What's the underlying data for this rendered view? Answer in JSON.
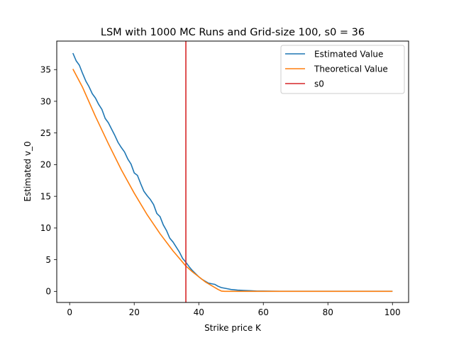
{
  "chart_data": {
    "type": "line",
    "title": "LSM with 1000 MC Runs and Grid-size 100, s0 = 36",
    "xlabel": "Strike price K",
    "ylabel": "Estimated v_0",
    "xlim": [
      -4.0,
      105.0
    ],
    "ylim": [
      -1.75,
      39.5
    ],
    "xticks": [
      0,
      20,
      40,
      60,
      80,
      100
    ],
    "yticks": [
      0,
      5,
      10,
      15,
      20,
      25,
      30,
      35
    ],
    "grid": false,
    "legend_position": "upper-right",
    "series": [
      {
        "name": "Estimated Value",
        "color": "#1f77b4",
        "x": [
          1,
          2,
          3,
          4,
          5,
          6,
          7,
          8,
          9,
          10,
          11,
          12,
          13,
          14,
          15,
          16,
          17,
          18,
          19,
          20,
          21,
          22,
          23,
          24,
          25,
          26,
          27,
          28,
          29,
          30,
          31,
          32,
          33,
          34,
          35,
          36,
          37,
          38,
          39,
          40,
          41,
          42,
          43,
          44,
          45,
          46,
          47,
          48,
          49,
          50,
          52,
          54,
          56,
          58,
          60,
          65,
          70,
          75,
          80,
          85,
          90,
          95,
          100
        ],
        "y": [
          37.6,
          36.4,
          35.7,
          34.4,
          33.2,
          32.3,
          31.2,
          30.5,
          29.5,
          28.7,
          27.3,
          26.6,
          25.6,
          24.6,
          23.5,
          22.7,
          22.0,
          20.9,
          20.1,
          18.7,
          18.3,
          17.0,
          15.8,
          15.1,
          14.5,
          13.7,
          12.3,
          11.8,
          10.5,
          9.6,
          8.4,
          7.8,
          7.0,
          6.2,
          5.2,
          4.6,
          3.9,
          3.3,
          2.8,
          2.3,
          1.9,
          1.6,
          1.3,
          1.2,
          1.1,
          0.8,
          0.6,
          0.5,
          0.4,
          0.3,
          0.2,
          0.15,
          0.1,
          0.05,
          0.05,
          0.02,
          0.02,
          0.02,
          0.02,
          0.02,
          0.02,
          0.02,
          0.02
        ]
      },
      {
        "name": "Theoretical Value",
        "color": "#ff7f0e",
        "x": [
          1,
          4,
          8,
          12,
          16,
          20,
          24,
          28,
          32,
          36,
          38,
          40,
          42,
          44,
          46,
          47,
          48,
          50,
          55,
          60,
          70,
          80,
          90,
          100
        ],
        "y": [
          35.1,
          32.2,
          27.6,
          23.3,
          19.2,
          15.5,
          12.1,
          9.1,
          6.4,
          4.0,
          3.1,
          2.3,
          1.5,
          0.9,
          0.3,
          0.05,
          0.0,
          0.0,
          0.0,
          0.0,
          0.0,
          0.0,
          0.0,
          0.0
        ]
      },
      {
        "name": "s0",
        "color": "#d62728",
        "vline": 36
      }
    ]
  }
}
